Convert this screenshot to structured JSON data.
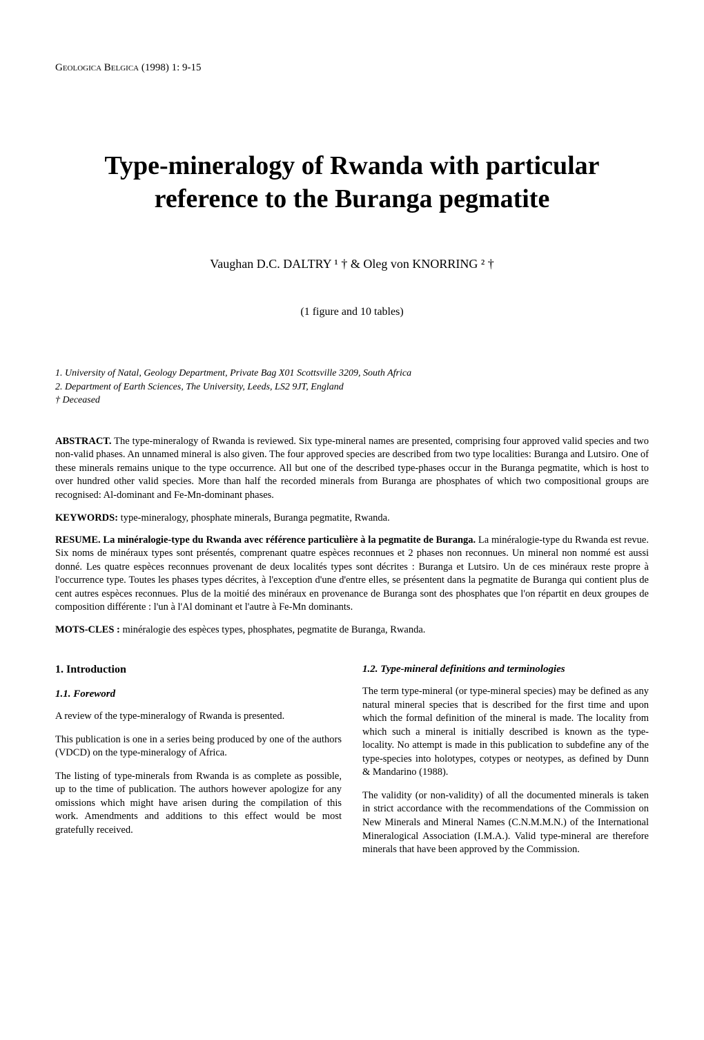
{
  "journal_header": "Geologica Belgica (1998) 1: 9-15",
  "title": "Type-mineralogy of Rwanda with particular reference to the Buranga pegmatite",
  "authors_line": "Vaughan D.C. DALTRY ¹ † & Oleg von KNORRING ² †",
  "figures_note": "(1 figure and 10 tables)",
  "affiliations": {
    "line1": "1. University of Natal, Geology Department, Private Bag X01 Scottsville 3209, South Africa",
    "line2": "2. Department of Earth Sciences, The University, Leeds, LS2 9JT, England",
    "line3": "† Deceased"
  },
  "abstract": {
    "label": "ABSTRACT.",
    "text": " The type-mineralogy of Rwanda is reviewed. Six type-mineral names are presented, comprising four approved valid species and two non-valid phases. An unnamed mineral is also given. The four approved species are described from two type localities: Buranga and Lutsiro. One of these minerals remains unique to the type occurrence. All but one of the described type-phases occur in the Buranga pegmatite, which is host to over hundred other valid species. More than half the recorded minerals from Buranga are phosphates of which two compositional groups are recognised: Al-dominant and Fe-Mn-dominant phases."
  },
  "keywords": {
    "label": "KEYWORDS:",
    "text": " type-mineralogy, phosphate minerals, Buranga pegmatite, Rwanda."
  },
  "resume": {
    "label": "RESUME.",
    "title": " La minéralogie-type du Rwanda avec référence particulière à la pegmatite de Buranga.",
    "text": " La minéralogie-type du Rwanda est revue. Six noms de minéraux types sont présentés, comprenant quatre espèces reconnues et 2 phases non reconnues. Un mineral non nommé est aussi donné. Les quatre espèces reconnues provenant de deux localités types sont décrites : Buranga et Lutsiro. Un de ces minéraux reste propre à l'occurrence type. Toutes les phases types décrites, à l'exception d'une d'entre elles, se présentent dans la pegmatite de Buranga qui contient plus de cent autres espèces reconnues. Plus de la moitié des minéraux en provenance de Buranga sont des phosphates que l'on répartit en deux groupes de composition différente : l'un à l'Al dominant et l'autre à Fe-Mn dominants."
  },
  "motscles": {
    "label": "MOTS-CLES :",
    "text": " minéralogie des espèces types, phosphates, pegmatite de Buranga, Rwanda."
  },
  "left_column": {
    "section_heading": "1. Introduction",
    "subsection_heading": "1.1. Foreword",
    "para1": "A review of the type-mineralogy of Rwanda is presented.",
    "para2": "This publication is one in a series being produced by one of the authors (VDCD) on the type-mineralogy of Africa.",
    "para3": "The listing of type-minerals from Rwanda is as complete as possible, up to the time of publication. The authors however apologize for any omissions which might have arisen during the compilation of this work. Amendments and additions to this effect would be most gratefully received."
  },
  "right_column": {
    "subsection_heading": "1.2. Type-mineral definitions and terminologies",
    "para1": "The term type-mineral (or type-mineral species) may be defined as any natural mineral species that is described for the first time and upon which the formal definition of the mineral is made. The locality from which such a mineral is initially described is known as the type-locality. No attempt is made in this publication to subdefine any of the type-species into holotypes, cotypes or neotypes, as defined by Dunn & Mandarino (1988).",
    "para2": "The validity (or non-validity) of all the documented minerals is taken in strict accordance with the recommendations of the Commission on New Minerals and Mineral Names (C.N.M.M.N.) of the International Mineralogical Association (I.M.A.). Valid type-mineral are therefore minerals that have been approved by the Commission."
  }
}
